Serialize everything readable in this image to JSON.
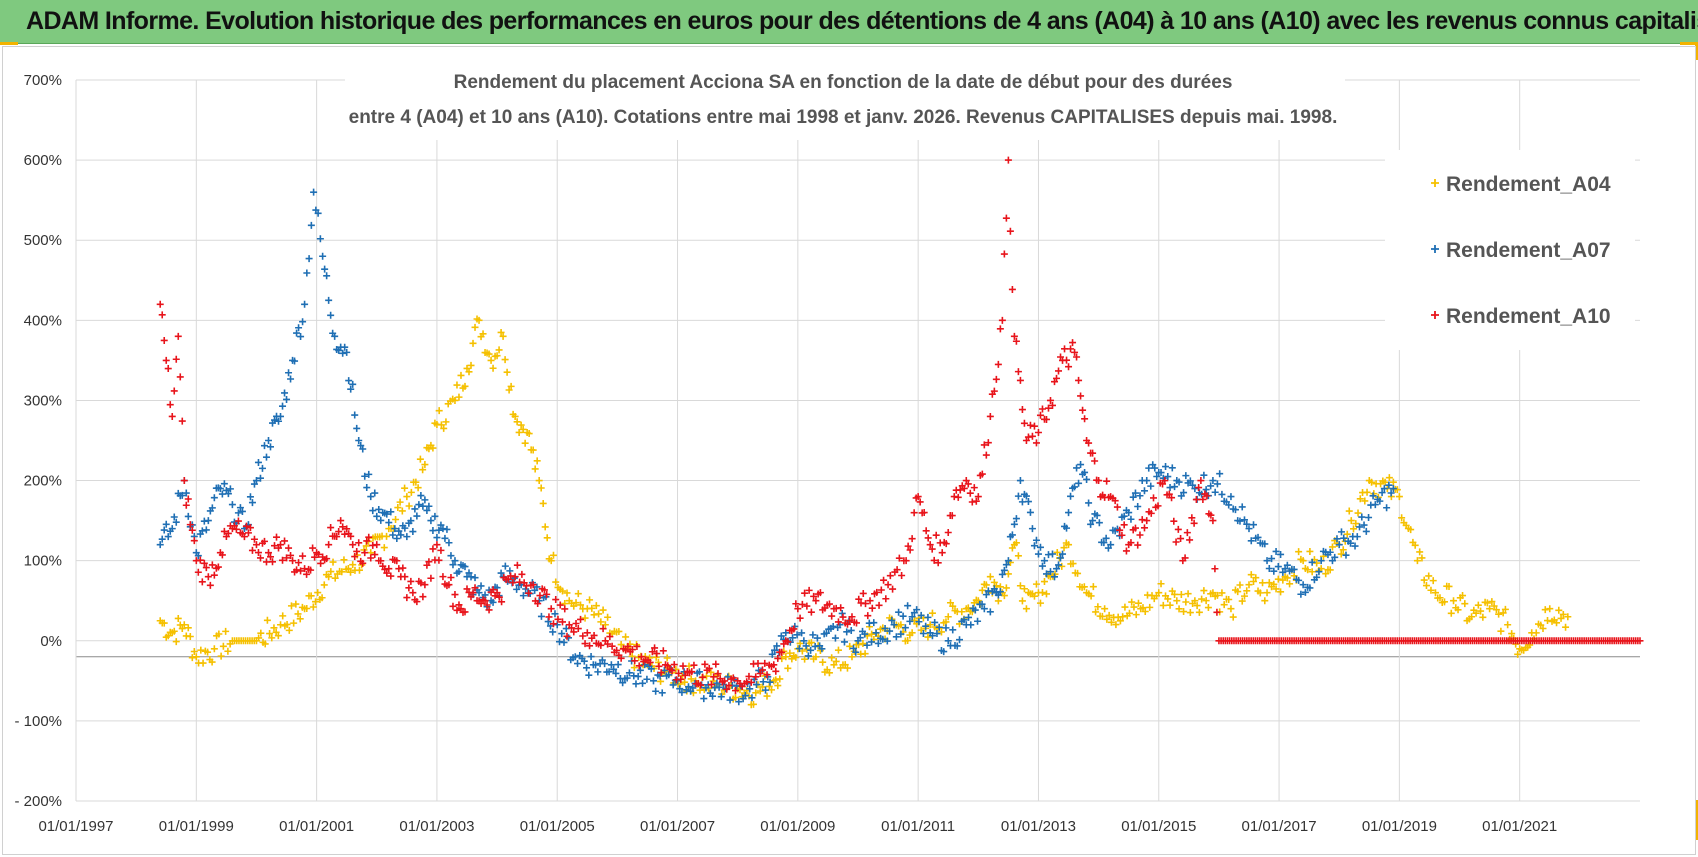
{
  "banner": {
    "title": "ADAM Informe. Evolution historique des performances en euros pour des détentions de 4 ans (A04) à 10 ans (A10) avec les revenus connus capitalisés"
  },
  "chart_data": {
    "type": "scatter",
    "title_line1": "Rendement du placement Acciona SA en fonction de la date de début pour des durées",
    "title_line2": "entre 4 (A04) et 10 ans (A10).  Cotations entre mai 1998 et janv. 2026. Revenus CAPITALISES  depuis mai. 1998.",
    "xlabel": "",
    "ylabel": "",
    "ylim": [
      -200,
      700
    ],
    "xlim": [
      1997.0,
      2023.0
    ],
    "y_ticks": [
      700,
      600,
      500,
      400,
      300,
      200,
      100,
      0,
      -100,
      -200
    ],
    "y_tick_labels": [
      "700%",
      "600%",
      "500%",
      "400%",
      "300%",
      "200%",
      "100%",
      "0%",
      "- 100%",
      "- 200%"
    ],
    "x_ticks": [
      1997,
      1999,
      2001,
      2003,
      2005,
      2007,
      2009,
      2011,
      2013,
      2015,
      2017,
      2019,
      2021
    ],
    "x_tick_labels": [
      "01/01/1997",
      "01/01/1999",
      "01/01/2001",
      "01/01/2003",
      "01/01/2005",
      "01/01/2007",
      "01/01/2009",
      "01/01/2011",
      "01/01/2013",
      "01/01/2015",
      "01/01/2017",
      "01/01/2019",
      "01/01/2021"
    ],
    "legend_position": "top-right",
    "series": [
      {
        "name": "Rendement_A04",
        "color": "#f5c000",
        "x": [
          1998.4,
          1998.6,
          1998.8,
          1999.0,
          1999.3,
          1999.6,
          2000.0,
          2000.4,
          2000.8,
          2001.2,
          2001.6,
          2001.9,
          2002.2,
          2002.5,
          2002.8,
          2003.0,
          2003.3,
          2003.5,
          2003.7,
          2003.9,
          2004.1,
          2004.3,
          2004.5,
          2004.7,
          2004.9,
          2005.2,
          2005.5,
          2005.8,
          2006.1,
          2006.5,
          2006.9,
          2007.3,
          2007.7,
          2008.0,
          2008.3,
          2008.6,
          2008.8,
          2009.0,
          2009.3,
          2009.6,
          2009.9,
          2010.3,
          2010.6,
          2010.9,
          2011.2,
          2011.5,
          2011.8,
          2012.0,
          2012.2,
          2012.4,
          2012.6,
          2012.8,
          2013.0,
          2013.2,
          2013.5,
          2013.8,
          2014.1,
          2014.4,
          2014.7,
          2015.0,
          2015.3,
          2015.6,
          2015.9,
          2016.2,
          2016.5,
          2016.8,
          2017.1,
          2017.4,
          2017.7,
          2018.0,
          2018.2,
          2018.5,
          2018.8,
          2019.0,
          2019.3,
          2019.6,
          2019.9,
          2020.2,
          2020.5,
          2020.8,
          2021.0,
          2021.2,
          2021.5,
          2021.8
        ],
        "values": [
          25,
          10,
          20,
          -20,
          -10,
          0,
          0,
          20,
          40,
          80,
          95,
          110,
          140,
          180,
          220,
          270,
          300,
          340,
          400,
          350,
          380,
          280,
          260,
          200,
          100,
          50,
          40,
          20,
          -10,
          -30,
          -40,
          -50,
          -55,
          -60,
          -65,
          -50,
          -20,
          -10,
          -20,
          -30,
          -20,
          10,
          20,
          10,
          20,
          30,
          40,
          50,
          80,
          60,
          120,
          40,
          60,
          80,
          120,
          60,
          40,
          30,
          40,
          60,
          50,
          50,
          60,
          40,
          70,
          60,
          80,
          100,
          90,
          120,
          150,
          200,
          190,
          180,
          100,
          60,
          50,
          30,
          40,
          20,
          -10,
          10,
          40,
          30
        ]
      },
      {
        "name": "Rendement_A07",
        "color": "#1f6fb4",
        "x": [
          1998.4,
          1998.6,
          1998.8,
          1999.0,
          1999.2,
          1999.4,
          1999.6,
          1999.8,
          2000.0,
          2000.2,
          2000.4,
          2000.6,
          2000.8,
          2000.95,
          2001.1,
          2001.3,
          2001.5,
          2001.7,
          2001.9,
          2002.1,
          2002.3,
          2002.5,
          2002.7,
          2002.9,
          2003.1,
          2003.3,
          2003.5,
          2003.7,
          2003.9,
          2004.1,
          2004.4,
          2004.7,
          2005.0,
          2005.3,
          2005.6,
          2005.9,
          2006.2,
          2006.6,
          2007.0,
          2007.4,
          2007.8,
          2008.2,
          2008.5,
          2008.8,
          2009.1,
          2009.4,
          2009.7,
          2010.0,
          2010.3,
          2010.6,
          2010.9,
          2011.2,
          2011.5,
          2011.8,
          2012.1,
          2012.3,
          2012.5,
          2012.7,
          2012.9,
          2013.1,
          2013.3,
          2013.5,
          2013.7,
          2013.9,
          2014.2,
          2014.5,
          2014.8,
          2015.0,
          2015.3,
          2015.6,
          2015.9,
          2016.2,
          2016.5,
          2016.8,
          2017.1,
          2017.4,
          2017.7,
          2018.0,
          2018.3,
          2018.6,
          2018.9
        ],
        "values": [
          120,
          140,
          200,
          110,
          150,
          190,
          170,
          140,
          200,
          250,
          280,
          350,
          420,
          560,
          480,
          380,
          360,
          250,
          180,
          160,
          140,
          130,
          170,
          150,
          140,
          100,
          80,
          60,
          50,
          80,
          70,
          50,
          20,
          -20,
          -30,
          -30,
          -40,
          -50,
          -50,
          -55,
          -60,
          -60,
          -45,
          10,
          0,
          -10,
          20,
          0,
          10,
          20,
          30,
          10,
          0,
          20,
          40,
          60,
          100,
          200,
          140,
          100,
          90,
          160,
          220,
          150,
          120,
          160,
          200,
          210,
          200,
          190,
          200,
          180,
          140,
          100,
          90,
          70,
          100,
          120,
          130,
          170,
          190
        ]
      },
      {
        "name": "Rendement_A10",
        "color": "#e8141b",
        "x": [
          1998.4,
          1998.5,
          1998.6,
          1998.7,
          1998.8,
          1999.0,
          1999.2,
          1999.4,
          1999.6,
          1999.8,
          2000.0,
          2000.2,
          2000.4,
          2000.6,
          2000.8,
          2001.0,
          2001.2,
          2001.4,
          2001.6,
          2001.8,
          2002.0,
          2002.2,
          2002.4,
          2002.6,
          2002.8,
          2003.0,
          2003.2,
          2003.4,
          2003.6,
          2003.8,
          2004.0,
          2004.3,
          2004.6,
          2004.9,
          2005.2,
          2005.5,
          2005.8,
          2006.1,
          2006.4,
          2006.8,
          2007.2,
          2007.6,
          2008.0,
          2008.3,
          2008.6,
          2008.8,
          2009.0,
          2009.3,
          2009.6,
          2009.9,
          2010.2,
          2010.5,
          2010.8,
          2011.0,
          2011.2,
          2011.4,
          2011.6,
          2011.8,
          2012.0,
          2012.2,
          2012.4,
          2012.5,
          2012.6,
          2012.8,
          2013.0,
          2013.2,
          2013.4,
          2013.6,
          2013.8,
          2014.0,
          2014.2,
          2014.5,
          2014.8,
          2015.1,
          2015.4,
          2015.7,
          2015.9,
          2016.0,
          2017.0,
          2018.0,
          2019.0,
          2020.0,
          2021.0,
          2022.0,
          2023.0
        ],
        "values": [
          420,
          350,
          280,
          380,
          200,
          100,
          80,
          110,
          140,
          130,
          120,
          110,
          120,
          100,
          90,
          110,
          120,
          150,
          120,
          110,
          120,
          90,
          80,
          60,
          70,
          120,
          70,
          40,
          60,
          50,
          60,
          80,
          70,
          40,
          20,
          10,
          0,
          -10,
          -20,
          -30,
          -40,
          -45,
          -50,
          -45,
          -30,
          0,
          40,
          50,
          40,
          30,
          50,
          70,
          100,
          180,
          120,
          110,
          180,
          200,
          180,
          280,
          400,
          600,
          380,
          250,
          260,
          300,
          350,
          360,
          250,
          200,
          180,
          120,
          150,
          200,
          100,
          200,
          150,
          0,
          0,
          0,
          0,
          0,
          0,
          0,
          0
        ]
      }
    ]
  }
}
